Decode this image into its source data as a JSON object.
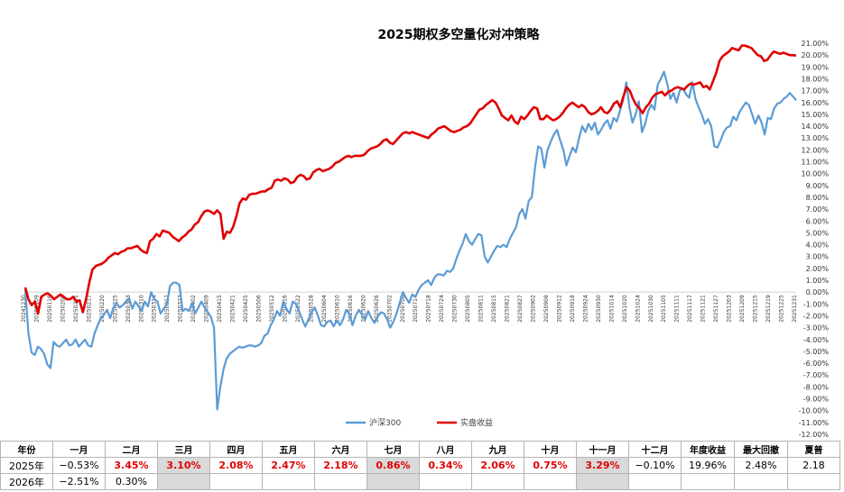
{
  "chart_data": {
    "type": "line",
    "title": "2025期权多空量化对冲策略",
    "ylim": [
      -12,
      21
    ],
    "y_tick_step": 1,
    "y_tick_format": "percent_2dp",
    "grid": false,
    "legend_position": "bottom",
    "x_tick_labels": [
      "20241230",
      "20250109",
      "20250116",
      "20250206",
      "20250211",
      "20250217",
      "20250220",
      "20250225",
      "20250303",
      "20250310",
      "20250314",
      "20250317",
      "20250327",
      "20250402",
      "20250409",
      "20250415",
      "20250421",
      "20250425",
      "20250506",
      "20250512",
      "20250516",
      "20250522",
      "20250528",
      "20250604",
      "20250610",
      "20250616",
      "20250620",
      "20250626",
      "20250702",
      "20250708",
      "20250714",
      "20250718",
      "20250724",
      "20250730",
      "20250805",
      "20250811",
      "20250815",
      "20250821",
      "20250827",
      "20250902",
      "20250908",
      "20250912",
      "20250918",
      "20250924",
      "20250930",
      "20251014",
      "20251020",
      "20251024",
      "20251030",
      "20251105",
      "20251111",
      "20251117",
      "20251121",
      "20251127",
      "20251203",
      "20251209",
      "20251215",
      "20251219",
      "20251225",
      "20251231"
    ],
    "series": [
      {
        "name": "沪深300",
        "color": "#5b9bd5",
        "values": [
          0.2,
          -3.5,
          -5.1,
          -5.3,
          -4.6,
          -4.8,
          -5.2,
          -6.1,
          -6.4,
          -4.2,
          -4.5,
          -4.6,
          -4.3,
          -4.0,
          -4.5,
          -4.4,
          -4.0,
          -4.6,
          -4.3,
          -4.0,
          -4.5,
          -4.6,
          -3.5,
          -2.8,
          -2.2,
          -1.9,
          -1.5,
          -2.2,
          -1.3,
          -0.9,
          -1.3,
          -1.1,
          -0.8,
          -0.5,
          -1.4,
          -0.8,
          -1.2,
          -1.6,
          -0.8,
          -1.2,
          0.0,
          -0.6,
          -0.8,
          -1.8,
          -1.4,
          -1.0,
          0.5,
          0.8,
          0.8,
          0.6,
          -1.6,
          -1.4,
          -1.6,
          -0.9,
          -1.8,
          -1.3,
          -0.8,
          -1.3,
          -1.7,
          -2.1,
          -3.0,
          -9.9,
          -8.0,
          -6.5,
          -5.6,
          -5.2,
          -5.0,
          -4.8,
          -4.6,
          -4.7,
          -4.6,
          -4.5,
          -4.5,
          -4.6,
          -4.5,
          -4.3,
          -3.7,
          -3.5,
          -2.8,
          -2.3,
          -1.6,
          -2.0,
          -0.8,
          -1.4,
          -1.8,
          -0.8,
          -1.0,
          -1.6,
          -2.3,
          -2.9,
          -2.3,
          -1.7,
          -1.3,
          -2.0,
          -2.8,
          -2.9,
          -2.5,
          -2.4,
          -2.9,
          -2.4,
          -2.8,
          -2.3,
          -1.5,
          -1.8,
          -2.8,
          -2.0,
          -1.5,
          -1.9,
          -2.3,
          -1.6,
          -2.2,
          -2.6,
          -2.1,
          -1.7,
          -1.8,
          -2.3,
          -3.0,
          -2.5,
          -1.8,
          -0.9,
          0.0,
          -0.5,
          -0.9,
          -0.2,
          -0.4,
          0.2,
          0.6,
          0.8,
          1.0,
          0.6,
          1.2,
          1.5,
          1.5,
          1.4,
          1.8,
          1.7,
          2.0,
          2.8,
          3.5,
          4.1,
          4.9,
          4.3,
          4.0,
          4.5,
          4.9,
          4.8,
          3.0,
          2.5,
          3.0,
          3.5,
          3.9,
          3.8,
          4.0,
          3.8,
          4.5,
          5.0,
          5.5,
          6.6,
          7.0,
          6.2,
          7.7,
          8.0,
          10.5,
          12.3,
          12.1,
          10.5,
          12.0,
          12.7,
          13.3,
          13.7,
          12.8,
          12.0,
          10.7,
          11.5,
          12.2,
          11.8,
          13.0,
          14.0,
          13.5,
          14.2,
          13.7,
          14.3,
          13.3,
          13.7,
          14.2,
          14.5,
          13.8,
          14.7,
          14.4,
          15.3,
          16.2,
          17.7,
          15.6,
          14.3,
          15.0,
          16.1,
          13.5,
          14.2,
          15.3,
          15.8,
          15.4,
          17.5,
          18.0,
          18.6,
          17.6,
          16.3,
          16.8,
          16.0,
          17.0,
          17.2,
          16.7,
          16.4,
          17.7,
          16.3,
          15.6,
          15.0,
          14.2,
          14.6,
          14.0,
          12.3,
          12.2,
          12.8,
          13.5,
          13.9,
          14.0,
          14.8,
          14.5,
          15.2,
          15.6,
          16.0,
          15.8,
          15.0,
          14.2,
          14.9,
          14.3,
          13.3,
          14.7,
          14.6,
          15.5,
          15.9,
          16.0,
          16.3,
          16.5,
          16.8,
          16.5,
          16.2
        ]
      },
      {
        "name": "实盘收益",
        "color": "#e00000",
        "values": [
          0.4,
          -0.6,
          -1.1,
          -0.8,
          -1.8,
          -0.4,
          -0.2,
          -0.1,
          -0.3,
          -0.6,
          -0.4,
          -0.2,
          -0.4,
          -0.6,
          -0.6,
          -0.4,
          -0.8,
          -0.7,
          -1.7,
          -0.6,
          0.8,
          1.9,
          2.2,
          2.3,
          2.4,
          2.6,
          2.9,
          3.1,
          3.3,
          3.2,
          3.4,
          3.5,
          3.7,
          3.7,
          3.8,
          3.9,
          3.6,
          3.4,
          3.3,
          4.3,
          4.5,
          4.9,
          4.7,
          5.2,
          5.1,
          5.0,
          4.7,
          4.5,
          4.3,
          4.6,
          4.8,
          5.1,
          5.3,
          5.7,
          5.9,
          6.4,
          6.8,
          6.9,
          6.8,
          6.6,
          6.9,
          6.6,
          4.5,
          5.1,
          5.0,
          5.5,
          6.4,
          7.5,
          7.9,
          7.8,
          8.2,
          8.3,
          8.3,
          8.4,
          8.5,
          8.5,
          8.7,
          8.8,
          9.4,
          9.5,
          9.4,
          9.6,
          9.5,
          9.2,
          9.3,
          9.7,
          9.9,
          9.8,
          9.5,
          9.6,
          10.1,
          10.3,
          10.4,
          10.2,
          10.3,
          10.4,
          10.6,
          10.9,
          11.0,
          11.2,
          11.4,
          11.5,
          11.4,
          11.5,
          11.5,
          11.5,
          11.6,
          11.9,
          12.1,
          12.2,
          12.3,
          12.5,
          12.8,
          12.9,
          12.6,
          12.5,
          12.8,
          13.1,
          13.4,
          13.5,
          13.4,
          13.5,
          13.4,
          13.3,
          13.2,
          13.1,
          13.0,
          13.3,
          13.5,
          13.8,
          13.9,
          14.0,
          13.8,
          13.6,
          13.5,
          13.6,
          13.7,
          13.9,
          14.0,
          14.2,
          14.6,
          15.0,
          15.4,
          15.5,
          15.8,
          16.0,
          16.2,
          16.0,
          15.5,
          14.9,
          14.7,
          14.5,
          14.9,
          14.4,
          14.2,
          14.8,
          14.6,
          14.9,
          15.3,
          15.6,
          15.5,
          14.6,
          14.6,
          14.9,
          14.7,
          14.5,
          14.6,
          14.8,
          15.1,
          15.5,
          15.8,
          16.0,
          15.8,
          15.6,
          15.8,
          15.6,
          15.2,
          15.0,
          15.1,
          15.3,
          15.6,
          15.2,
          15.1,
          15.4,
          15.9,
          16.1,
          15.6,
          16.5,
          17.3,
          17.0,
          16.3,
          15.8,
          15.5,
          15.1,
          15.6,
          15.9,
          16.4,
          16.7,
          16.8,
          16.9,
          16.6,
          16.9,
          17.0,
          17.2,
          17.3,
          17.2,
          17.1,
          17.4,
          17.6,
          17.5,
          17.6,
          17.7,
          17.3,
          17.4,
          17.1,
          17.8,
          18.5,
          19.5,
          19.9,
          20.1,
          20.3,
          20.6,
          20.5,
          20.4,
          20.8,
          20.8,
          20.7,
          20.6,
          20.3,
          20.0,
          19.9,
          19.5,
          19.6,
          20.0,
          20.3,
          20.2,
          20.1,
          20.2,
          20.1,
          20.0,
          20.0,
          19.96
        ]
      }
    ]
  },
  "table": {
    "header": [
      "年份",
      "一月",
      "二月",
      "三月",
      "四月",
      "五月",
      "六月",
      "七月",
      "八月",
      "九月",
      "十月",
      "十一月",
      "十二月",
      "年度收益",
      "最大回撤",
      "夏普"
    ],
    "rows": [
      {
        "cells": [
          {
            "v": "2025年",
            "c": "label"
          },
          {
            "v": "−0.53%",
            "c": ""
          },
          {
            "v": "3.45%",
            "c": "red"
          },
          {
            "v": "3.10%",
            "c": "red gray"
          },
          {
            "v": "2.08%",
            "c": "red"
          },
          {
            "v": "2.47%",
            "c": "red"
          },
          {
            "v": "2.18%",
            "c": "red"
          },
          {
            "v": "0.86%",
            "c": "red gray"
          },
          {
            "v": "0.34%",
            "c": "red"
          },
          {
            "v": "2.06%",
            "c": "red"
          },
          {
            "v": "0.75%",
            "c": "red"
          },
          {
            "v": "3.29%",
            "c": "red gray"
          },
          {
            "v": "−0.10%",
            "c": ""
          },
          {
            "v": "19.96%",
            "c": ""
          },
          {
            "v": "2.48%",
            "c": ""
          },
          {
            "v": "2.18",
            "c": ""
          }
        ]
      },
      {
        "cells": [
          {
            "v": "2026年",
            "c": "label"
          },
          {
            "v": "−2.51%",
            "c": ""
          },
          {
            "v": "0.30%",
            "c": ""
          },
          {
            "v": "",
            "c": "gray"
          },
          {
            "v": "",
            "c": ""
          },
          {
            "v": "",
            "c": ""
          },
          {
            "v": "",
            "c": ""
          },
          {
            "v": "",
            "c": "gray"
          },
          {
            "v": "",
            "c": ""
          },
          {
            "v": "",
            "c": ""
          },
          {
            "v": "",
            "c": ""
          },
          {
            "v": "",
            "c": "gray"
          },
          {
            "v": "",
            "c": ""
          },
          {
            "v": "",
            "c": ""
          },
          {
            "v": "",
            "c": ""
          },
          {
            "v": "",
            "c": ""
          }
        ]
      }
    ]
  }
}
